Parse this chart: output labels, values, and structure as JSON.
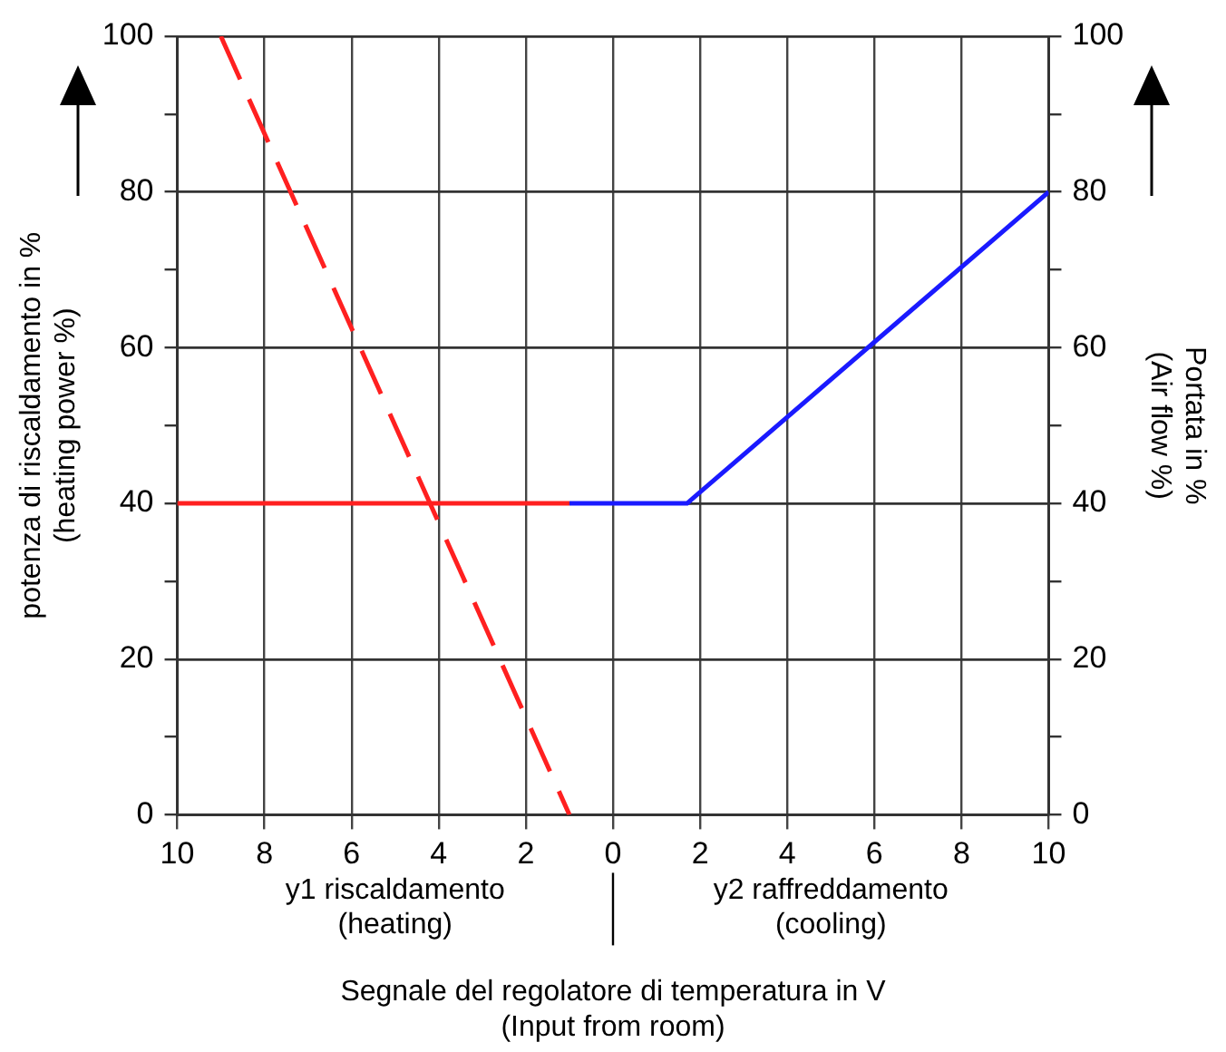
{
  "chart_data": {
    "type": "line",
    "xlabel": "Segnale del regolatore di temperatura in V\n(Input from room)",
    "ylabel": "potenza di riscaldamento in %\n(heating power %)",
    "y2label": "Portata in %\n(Air flow %)",
    "annotations": [
      "y1 riscaldamento\n(heating)",
      "y2 raffreddamento\n(cooling)"
    ],
    "xlim": [
      -10,
      10
    ],
    "xticks": [
      {
        "value": -10,
        "label": "10"
      },
      {
        "value": -8,
        "label": "8"
      },
      {
        "value": -6,
        "label": "6"
      },
      {
        "value": -4,
        "label": "4"
      },
      {
        "value": -2,
        "label": "2"
      },
      0,
      2,
      4,
      6,
      8,
      10
    ],
    "ylim": [
      0,
      100
    ],
    "yticks": [
      0,
      {
        "value": 10,
        "label": null
      },
      20,
      {
        "value": 30,
        "label": null
      },
      40,
      {
        "value": 50,
        "label": null
      },
      60,
      {
        "value": 70,
        "label": null
      },
      80,
      {
        "value": 90,
        "label": null
      },
      100
    ],
    "y2lim": [
      0,
      100
    ],
    "y2ticks": [
      0,
      {
        "value": 10,
        "label": null
      },
      20,
      {
        "value": 30,
        "label": null
      },
      40,
      {
        "value": 50,
        "label": null
      },
      60,
      {
        "value": 70,
        "label": null
      },
      80,
      {
        "value": 90,
        "label": null
      },
      100
    ],
    "grid": true,
    "legend": false,
    "marker": "none",
    "series": [
      {
        "color": "#ff2020",
        "x": [
          -10,
          -1
        ],
        "values": [
          40,
          40
        ]
      },
      {
        "color": "#ff2020",
        "x": [
          -9,
          -1
        ],
        "values": [
          100,
          0
        ],
        "line_style": "dashed"
      },
      {
        "color": "#1a1aff",
        "x": [
          -1,
          1.7,
          10
        ],
        "values": [
          40,
          40,
          80
        ]
      }
    ]
  }
}
